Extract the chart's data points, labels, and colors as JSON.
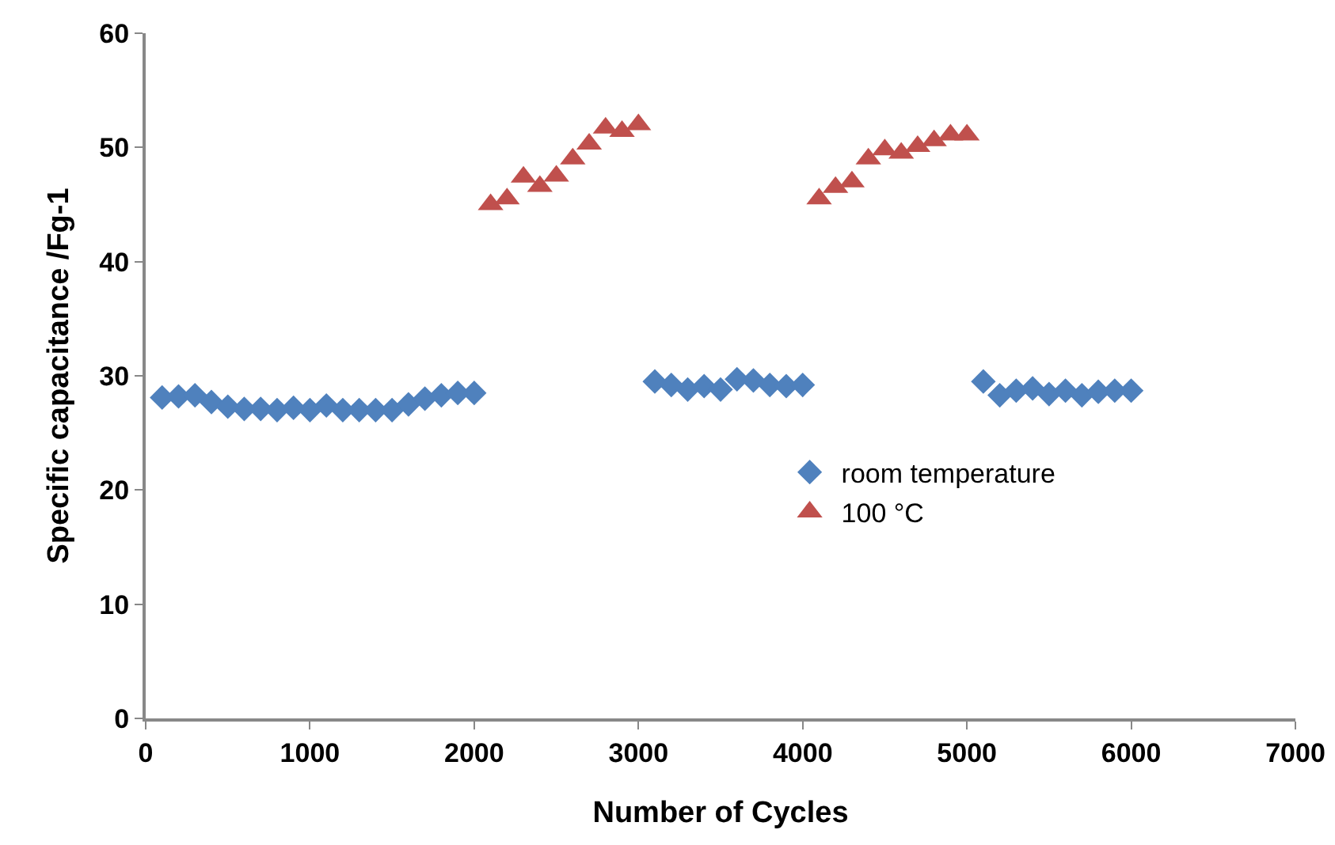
{
  "chart_data": {
    "type": "scatter",
    "xlabel": "Number of Cycles",
    "ylabel": "Specific capacitance /Fg-1",
    "xlim": [
      0,
      7000
    ],
    "xticks": [
      0,
      1000,
      2000,
      3000,
      4000,
      5000,
      6000,
      7000
    ],
    "ylim": [
      0,
      60
    ],
    "yticks": [
      0,
      10,
      20,
      30,
      40,
      50,
      60
    ],
    "grid": false,
    "legend": "right",
    "series": [
      {
        "name": "room temperature",
        "color": "#4f81bd",
        "marker": "diamond",
        "x": [
          100,
          200,
          300,
          400,
          500,
          600,
          700,
          800,
          900,
          1000,
          1100,
          1200,
          1300,
          1400,
          1500,
          1600,
          1700,
          1800,
          1900,
          2000,
          3100,
          3200,
          3300,
          3400,
          3500,
          3600,
          3700,
          3800,
          3900,
          4000,
          5100,
          5200,
          5300,
          5400,
          5500,
          5600,
          5700,
          5800,
          5900,
          6000
        ],
        "values": [
          28.1,
          28.2,
          28.3,
          27.7,
          27.3,
          27.1,
          27.1,
          27.0,
          27.2,
          27.0,
          27.4,
          27.0,
          27.0,
          27.0,
          27.0,
          27.5,
          28.0,
          28.3,
          28.5,
          28.5,
          29.5,
          29.2,
          28.8,
          29.1,
          28.8,
          29.7,
          29.6,
          29.2,
          29.1,
          29.2,
          29.5,
          28.3,
          28.7,
          28.9,
          28.4,
          28.7,
          28.3,
          28.6,
          28.7,
          28.7
        ]
      },
      {
        "name": "100 °C",
        "color": "#c0504d",
        "marker": "triangle",
        "x": [
          2100,
          2200,
          2300,
          2400,
          2500,
          2600,
          2700,
          2800,
          2900,
          3000,
          4100,
          4200,
          4300,
          4400,
          4500,
          4600,
          4700,
          4800,
          4900,
          5000
        ],
        "values": [
          45.0,
          45.5,
          47.4,
          46.6,
          47.5,
          49.0,
          50.3,
          51.7,
          51.4,
          52.0,
          45.5,
          46.5,
          47.0,
          49.0,
          49.8,
          49.5,
          50.1,
          50.6,
          51.1,
          51.1
        ]
      }
    ]
  }
}
